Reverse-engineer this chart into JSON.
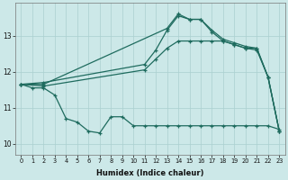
{
  "xlabel": "Humidex (Indice chaleur)",
  "bg_color": "#cce8e8",
  "line_color": "#1e6b5e",
  "grid_color": "#aacfcf",
  "xlim": [
    -0.5,
    23.5
  ],
  "ylim": [
    9.7,
    13.9
  ],
  "yticks": [
    10,
    11,
    12,
    13
  ],
  "xticks": [
    0,
    1,
    2,
    3,
    4,
    5,
    6,
    7,
    8,
    9,
    10,
    11,
    12,
    13,
    14,
    15,
    16,
    17,
    18,
    19,
    20,
    21,
    22,
    23
  ],
  "s1_x": [
    0,
    1,
    2,
    3,
    4,
    5,
    6,
    7,
    8,
    9,
    10,
    11,
    12,
    13,
    14,
    15,
    16,
    17,
    18,
    19,
    20,
    21,
    22,
    23
  ],
  "s1_y": [
    11.65,
    11.55,
    11.55,
    11.35,
    10.7,
    10.6,
    10.35,
    10.3,
    10.75,
    10.75,
    10.5,
    10.5,
    10.5,
    10.5,
    10.5,
    10.5,
    10.5,
    10.5,
    10.5,
    10.5,
    10.5,
    10.5,
    10.5,
    10.4
  ],
  "s2_x": [
    0,
    2,
    11,
    12,
    13,
    14,
    15,
    16,
    17,
    18,
    19,
    20,
    21,
    22,
    23
  ],
  "s2_y": [
    11.65,
    11.6,
    12.05,
    12.35,
    12.65,
    12.85,
    12.85,
    12.85,
    12.85,
    12.85,
    12.75,
    12.65,
    12.6,
    11.85,
    10.35
  ],
  "s3_x": [
    0,
    2,
    11,
    12,
    13,
    14,
    15,
    16,
    17,
    18,
    19,
    20,
    21,
    22,
    23
  ],
  "s3_y": [
    11.65,
    11.7,
    12.2,
    12.6,
    13.15,
    13.55,
    13.45,
    13.45,
    13.1,
    12.85,
    12.75,
    12.65,
    12.65,
    11.85,
    10.35
  ],
  "s4_x": [
    0,
    2,
    13,
    14,
    15,
    16,
    17,
    18,
    19,
    20,
    21,
    22,
    23
  ],
  "s4_y": [
    11.65,
    11.65,
    13.2,
    13.6,
    13.45,
    13.45,
    13.15,
    12.9,
    12.8,
    12.7,
    12.65,
    11.85,
    10.35
  ]
}
